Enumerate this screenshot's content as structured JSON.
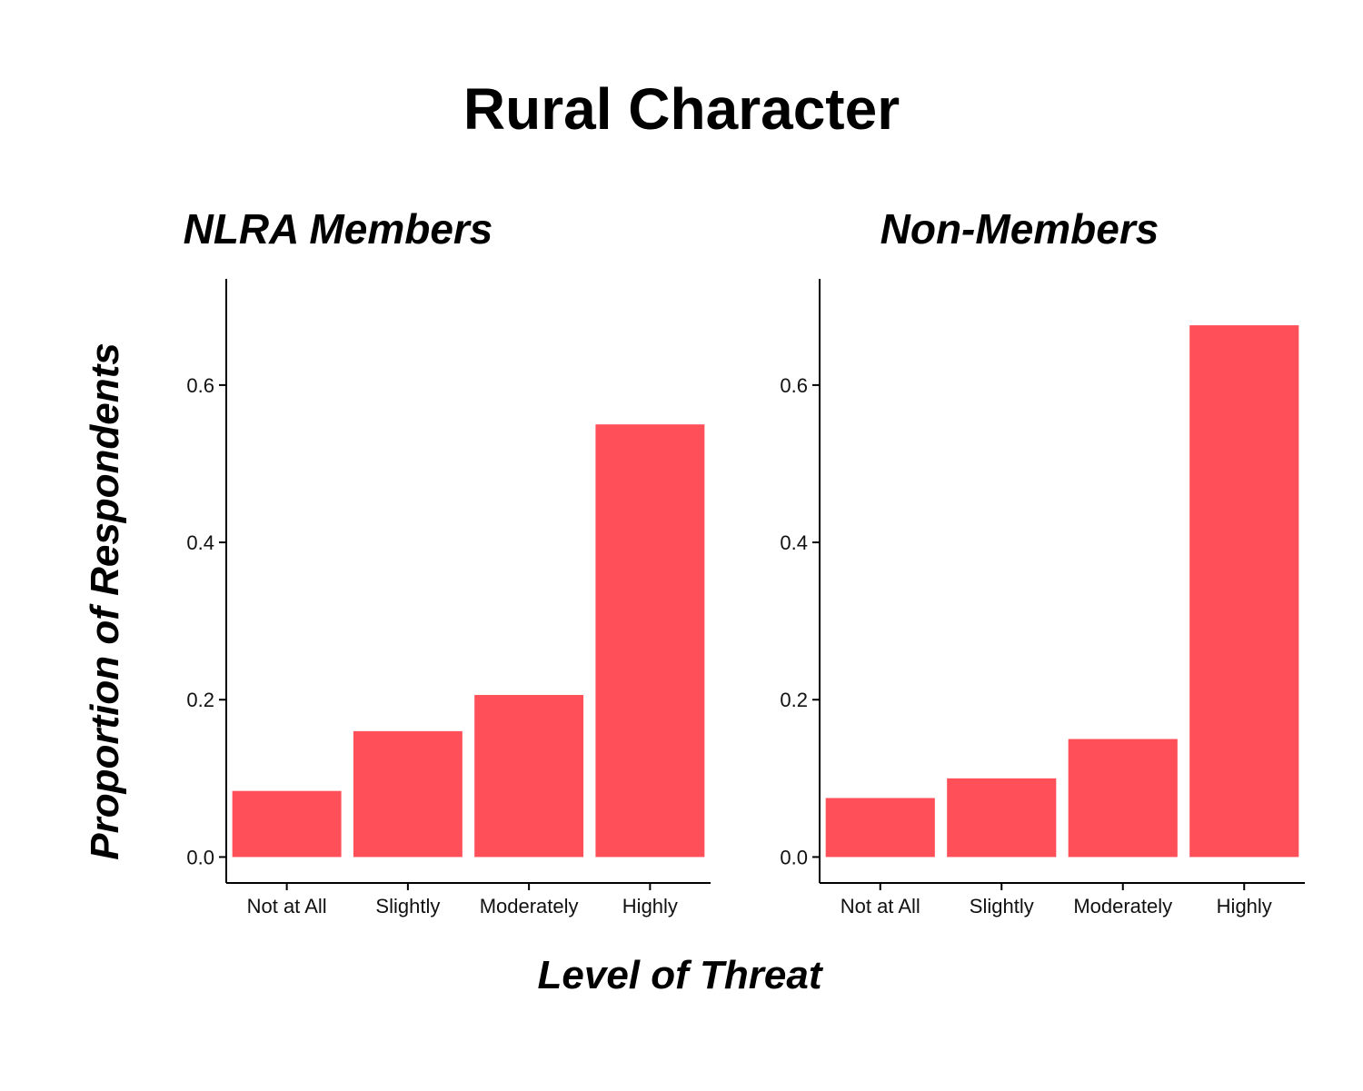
{
  "chart_data": {
    "type": "bar",
    "title": "Rural Character",
    "xlabel": "Level of Threat",
    "ylabel": "Proportion of Respondents",
    "bar_color": "#FF4F58",
    "categories": [
      "Not at All",
      "Slightly",
      "Moderately",
      "Highly"
    ],
    "ylim": [
      -0.033,
      0.735
    ],
    "yticks": [
      0.0,
      0.2,
      0.4,
      0.6
    ],
    "ytick_labels": [
      "0.0",
      "0.2",
      "0.4",
      "0.6"
    ],
    "grid": false,
    "legend": "none",
    "panels": [
      {
        "title": "NLRA Members",
        "values": [
          0.084,
          0.16,
          0.206,
          0.55
        ]
      },
      {
        "title": "Non-Members",
        "values": [
          0.075,
          0.1,
          0.15,
          0.676
        ]
      }
    ]
  }
}
